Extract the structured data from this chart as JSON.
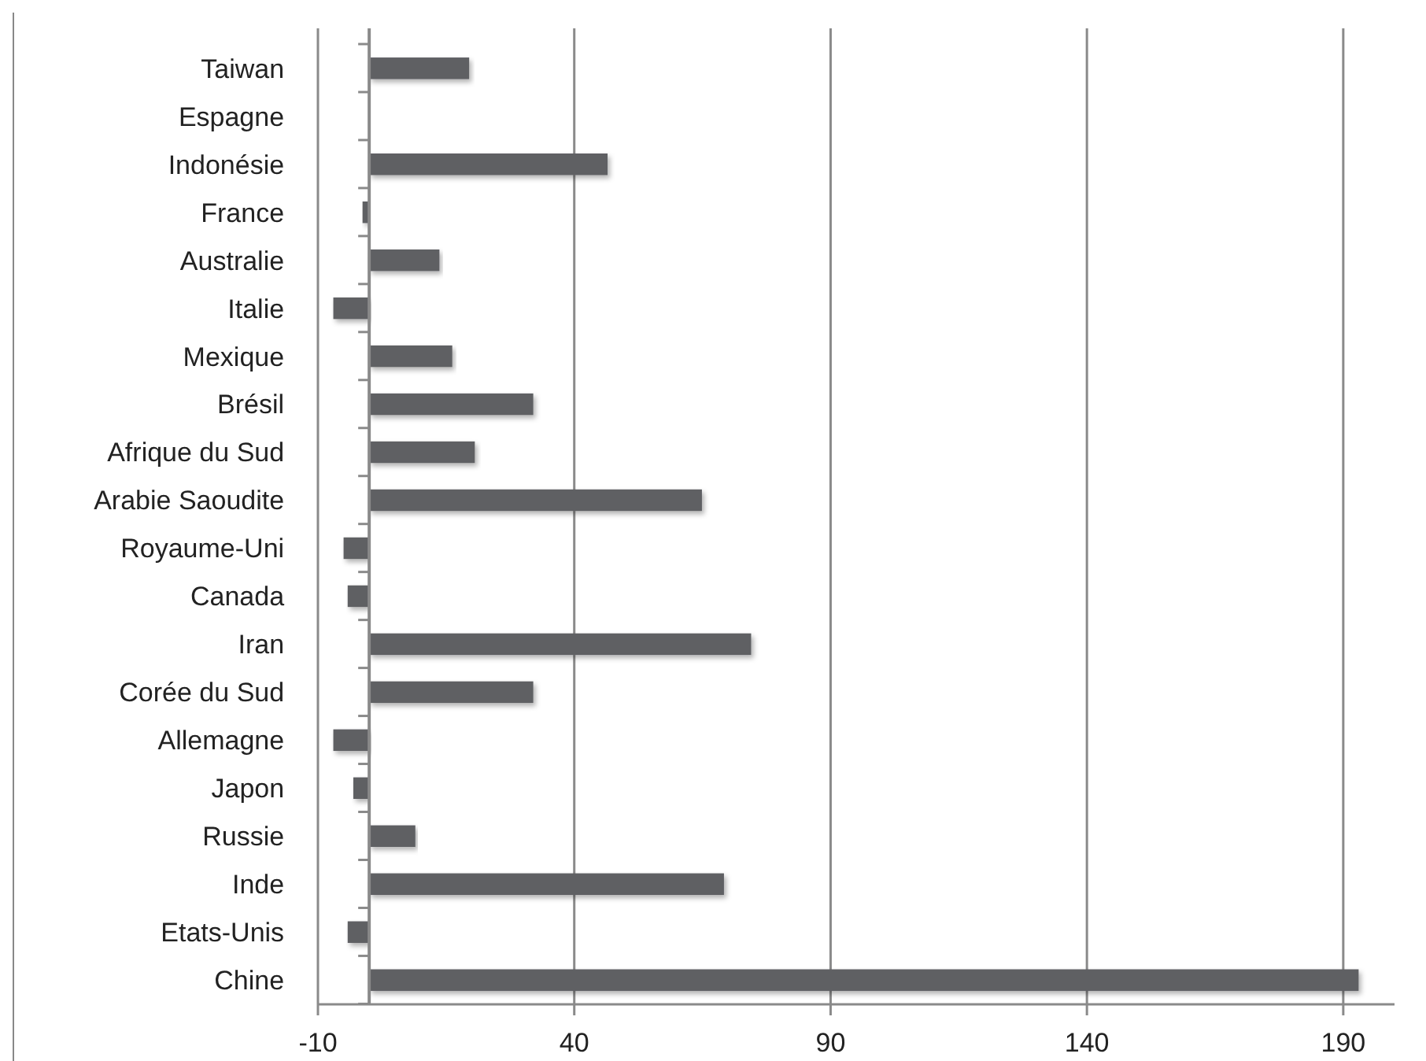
{
  "chart_data": {
    "type": "bar",
    "orientation": "horizontal",
    "categories": [
      "Taiwan",
      "Espagne",
      "Indonésie",
      "France",
      "Australie",
      "Italie",
      "Mexique",
      "Brésil",
      "Afrique du Sud",
      "Arabie Saoudite",
      "Royaume-Uni",
      "Canada",
      "Iran",
      "Corée du Sud",
      "Allemagne",
      "Japon",
      "Russie",
      "Inde",
      "Etats-Unis",
      "Chine"
    ],
    "values": [
      19.5,
      0,
      46.5,
      -1.3,
      13.7,
      -7,
      16.2,
      32,
      20.6,
      64.9,
      -5,
      -4.2,
      74.5,
      32,
      -7,
      -3.1,
      9,
      69.2,
      -4.2,
      193
    ],
    "color": "#5f6064",
    "xlim": [
      -10,
      200
    ],
    "xticks": [
      -10,
      40,
      90,
      140,
      190
    ],
    "grid": "x"
  }
}
